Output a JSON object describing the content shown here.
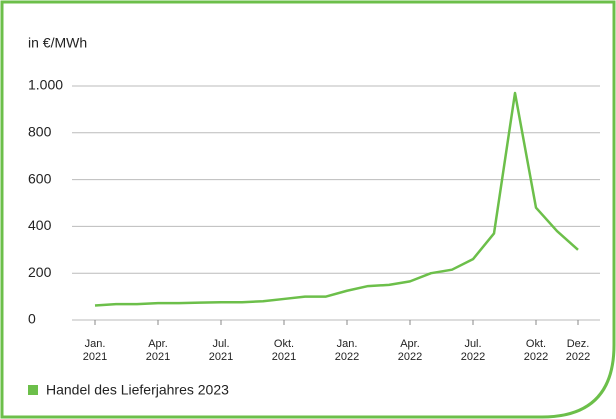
{
  "chart_data": {
    "type": "line",
    "y_label": "in €/MWh",
    "x": [
      "2021-01",
      "2021-02",
      "2021-03",
      "2021-04",
      "2021-05",
      "2021-06",
      "2021-07",
      "2021-08",
      "2021-09",
      "2021-10",
      "2021-11",
      "2021-12",
      "2022-01",
      "2022-02",
      "2022-03",
      "2022-04",
      "2022-05",
      "2022-06",
      "2022-07",
      "2022-08",
      "2022-09",
      "2022-10",
      "2022-11",
      "2022-12"
    ],
    "series": [
      {
        "name": "Handel des Lieferjahres 2023",
        "color": "#6cbf4a",
        "values": [
          62,
          68,
          68,
          72,
          72,
          74,
          76,
          76,
          80,
          90,
          100,
          100,
          125,
          145,
          150,
          165,
          200,
          215,
          260,
          370,
          970,
          480,
          380,
          300
        ]
      }
    ],
    "ylim": [
      0,
      1000
    ],
    "yticks": [
      0,
      200,
      400,
      600,
      800,
      {
        "value": 1000,
        "label": "1.000"
      }
    ],
    "xticks": [
      {
        "value": "2021-01",
        "label": "Jan.\n2021"
      },
      {
        "value": "2021-04",
        "label": "Apr.\n2021"
      },
      {
        "value": "2021-07",
        "label": "Jul.\n2021"
      },
      {
        "value": "2021-10",
        "label": "Okt.\n2021"
      },
      {
        "value": "2022-01",
        "label": "Jan.\n2022"
      },
      {
        "value": "2022-04",
        "label": "Apr.\n2022"
      },
      {
        "value": "2022-07",
        "label": "Jul.\n2022"
      },
      {
        "value": "2022-10",
        "label": "Okt.\n2022"
      },
      {
        "value": "2022-12",
        "label": "Dez.\n2022"
      }
    ],
    "grid": true
  }
}
